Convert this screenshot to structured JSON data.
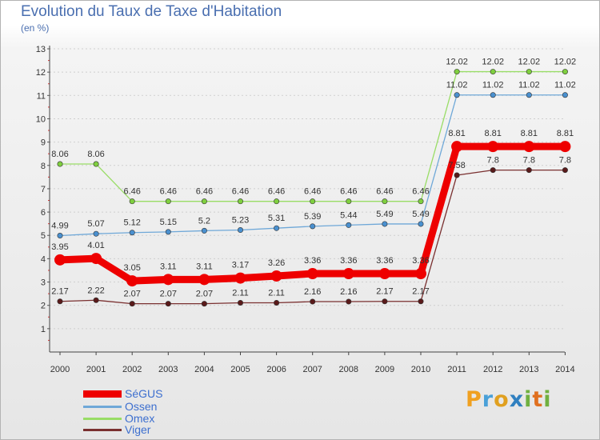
{
  "chart_data": {
    "type": "line",
    "title": "Evolution du Taux de Taxe d'Habitation",
    "subtitle": "(en %)",
    "x": [
      "2000",
      "2001",
      "2002",
      "2003",
      "2004",
      "2005",
      "2006",
      "2007",
      "2008",
      "2009",
      "2010",
      "2011",
      "2012",
      "2013",
      "2014"
    ],
    "ylim": [
      0,
      13
    ],
    "yticks": [
      "1",
      "2",
      "3",
      "4",
      "5",
      "6",
      "7",
      "8",
      "9",
      "10",
      "11",
      "12",
      "13"
    ],
    "grid": true,
    "legend_position": "bottom-left",
    "series": [
      {
        "name": "Omex",
        "color": "#7fcf3f",
        "line_color": "#99dd66",
        "width": 1.3,
        "marker": 3.2,
        "emphasis": false,
        "values": [
          8.06,
          8.06,
          6.46,
          6.46,
          6.46,
          6.46,
          6.46,
          6.46,
          6.46,
          6.46,
          6.46,
          12.02,
          12.02,
          12.02,
          12.02
        ],
        "labels": [
          "8.06",
          "8.06",
          "6.46",
          "6.46",
          "6.46",
          "6.46",
          "6.46",
          "6.46",
          "6.46",
          "6.46",
          "6.46",
          "12.02",
          "12.02",
          "12.02",
          "12.02"
        ]
      },
      {
        "name": "Ossen",
        "color": "#4a90cf",
        "line_color": "#6fa8d8",
        "width": 1.3,
        "marker": 3.2,
        "emphasis": false,
        "values": [
          4.99,
          5.07,
          5.12,
          5.15,
          5.2,
          5.23,
          5.31,
          5.39,
          5.44,
          5.49,
          5.49,
          11.02,
          11.02,
          11.02,
          11.02
        ],
        "labels": [
          "4.99",
          "5.07",
          "5.12",
          "5.15",
          "5.2",
          "5.23",
          "5.31",
          "5.39",
          "5.44",
          "5.49",
          "5.49",
          "11.02",
          "11.02",
          "11.02",
          "11.02"
        ]
      },
      {
        "name": "Viger",
        "color": "#5a1a1a",
        "line_color": "#7a3030",
        "width": 1.3,
        "marker": 3.2,
        "emphasis": false,
        "values": [
          2.17,
          2.22,
          2.07,
          2.07,
          2.07,
          2.11,
          2.11,
          2.16,
          2.16,
          2.17,
          2.17,
          7.58,
          7.8,
          7.8,
          7.8
        ],
        "labels": [
          "2.17",
          "2.22",
          "2.07",
          "2.07",
          "2.07",
          "2.11",
          "2.11",
          "2.16",
          "2.16",
          "2.17",
          "2.17",
          "7.58",
          "7.8",
          "7.8",
          "7.8"
        ]
      },
      {
        "name": "SéGUS",
        "color": "#ee0000",
        "line_color": "#ee0000",
        "width": 9,
        "marker": 7,
        "emphasis": true,
        "values": [
          3.95,
          4.01,
          3.05,
          3.11,
          3.11,
          3.17,
          3.26,
          3.36,
          3.36,
          3.36,
          3.36,
          8.81,
          8.81,
          8.81,
          8.81
        ],
        "labels": [
          "3.95",
          "4.01",
          "3.05",
          "3.11",
          "3.11",
          "3.17",
          "3.26",
          "3.36",
          "3.36",
          "3.36",
          "3.36",
          "8.81",
          "8.81",
          "8.81",
          "8.81"
        ]
      }
    ]
  },
  "legend": [
    {
      "name": "SéGUS",
      "color": "#ee0000",
      "thick": true
    },
    {
      "name": "Ossen",
      "color": "#6fa8d8",
      "thick": false
    },
    {
      "name": "Omex",
      "color": "#99dd66",
      "thick": false
    },
    {
      "name": "Viger",
      "color": "#7a3030",
      "thick": false
    }
  ],
  "logo": {
    "p": "P",
    "r": "r",
    "o": "o",
    "x": "x",
    "i1": "i",
    "t": "t",
    "i2": "i"
  }
}
